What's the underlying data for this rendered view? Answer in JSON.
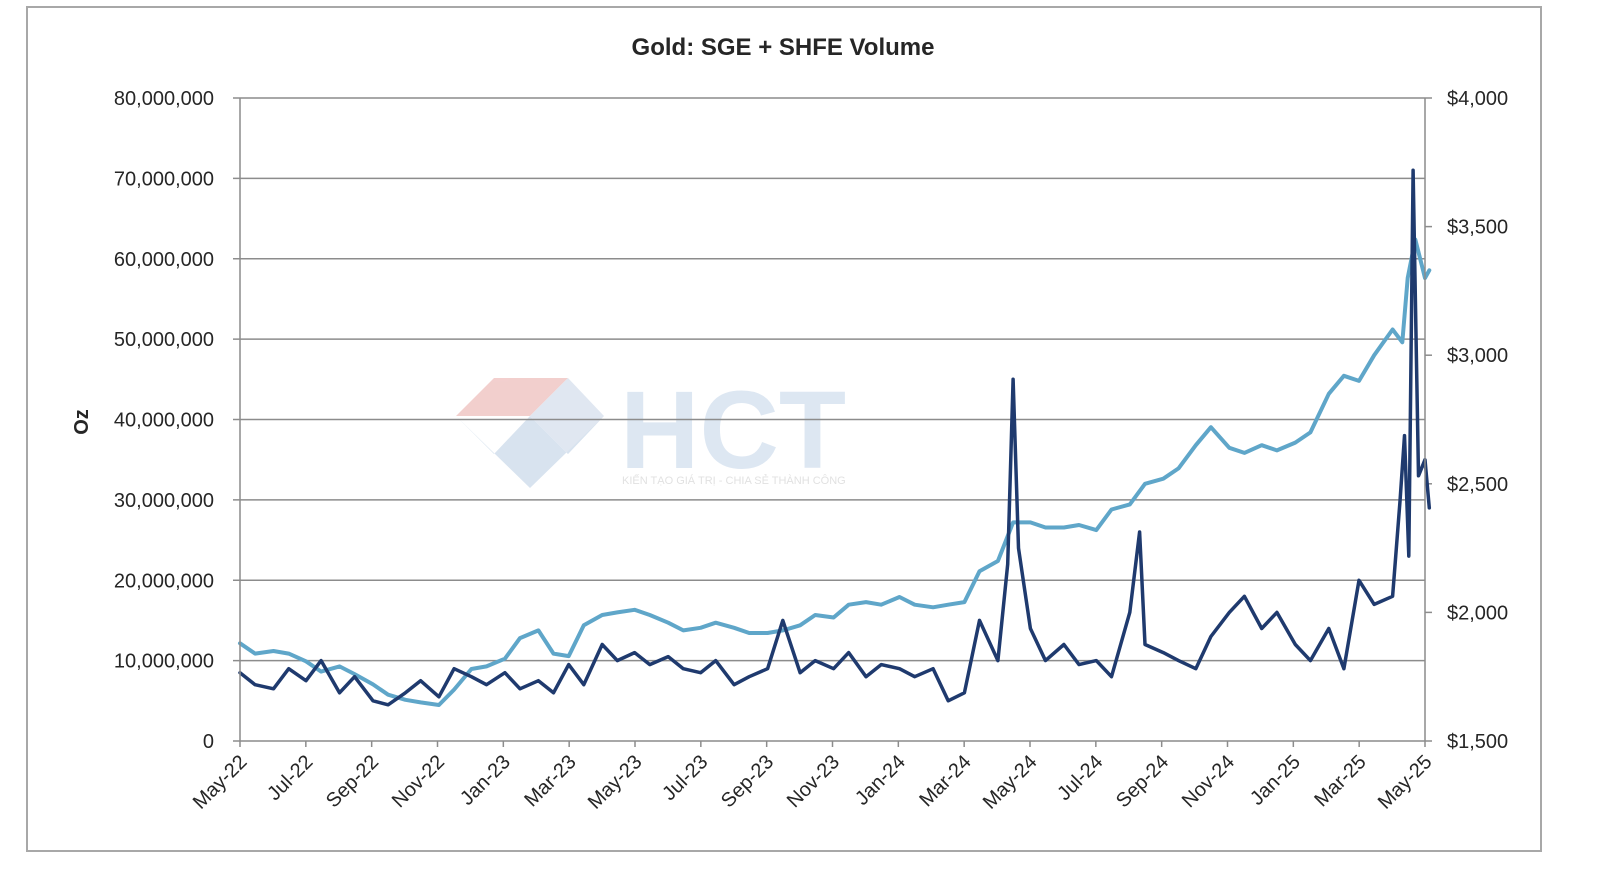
{
  "chart_data": {
    "type": "line",
    "title": "Gold: SGE + SHFE Volume",
    "ylabel": "Oz",
    "y2label": "",
    "ylim": [
      0,
      80000000
    ],
    "y2lim": [
      1500,
      4000
    ],
    "grid": true,
    "legend": "none",
    "yticks": [
      "0",
      "10,000,000",
      "20,000,000",
      "30,000,000",
      "40,000,000",
      "50,000,000",
      "60,000,000",
      "70,000,000",
      "80,000,000"
    ],
    "y2ticks": [
      "$1,500",
      "$2,000",
      "$2,500",
      "$3,000",
      "$3,500",
      "$4,000"
    ],
    "xticks": [
      "May-22",
      "Jul-22",
      "Sep-22",
      "Nov-22",
      "Jan-23",
      "Mar-23",
      "May-23",
      "Jul-23",
      "Sep-23",
      "Nov-23",
      "Jan-24",
      "Mar-24",
      "May-24",
      "Jul-24",
      "Sep-24",
      "Nov-24",
      "Jan-25",
      "Mar-25",
      "May-25"
    ],
    "series": [
      {
        "axis": "left",
        "color": "#1f3a6e",
        "x": [
          "2022-05-01",
          "2022-05-15",
          "2022-06-01",
          "2022-06-15",
          "2022-07-01",
          "2022-07-15",
          "2022-08-01",
          "2022-08-15",
          "2022-09-01",
          "2022-09-15",
          "2022-10-01",
          "2022-10-15",
          "2022-11-01",
          "2022-11-15",
          "2022-12-01",
          "2022-12-15",
          "2023-01-01",
          "2023-01-15",
          "2023-02-01",
          "2023-02-15",
          "2023-03-01",
          "2023-03-15",
          "2023-04-01",
          "2023-04-15",
          "2023-05-01",
          "2023-05-15",
          "2023-06-01",
          "2023-06-15",
          "2023-07-01",
          "2023-07-15",
          "2023-08-01",
          "2023-08-15",
          "2023-09-01",
          "2023-09-15",
          "2023-10-01",
          "2023-10-15",
          "2023-11-01",
          "2023-11-15",
          "2023-12-01",
          "2023-12-15",
          "2024-01-01",
          "2024-01-15",
          "2024-02-01",
          "2024-02-15",
          "2024-03-01",
          "2024-03-15",
          "2024-04-01",
          "2024-04-10",
          "2024-04-15",
          "2024-04-20",
          "2024-05-01",
          "2024-05-15",
          "2024-06-01",
          "2024-06-15",
          "2024-07-01",
          "2024-07-15",
          "2024-08-01",
          "2024-08-10",
          "2024-08-15",
          "2024-09-01",
          "2024-09-15",
          "2024-10-01",
          "2024-10-15",
          "2024-11-01",
          "2024-11-15",
          "2024-12-01",
          "2024-12-15",
          "2025-01-01",
          "2025-01-15",
          "2025-02-01",
          "2025-02-15",
          "2025-03-01",
          "2025-03-15",
          "2025-04-01",
          "2025-04-08",
          "2025-04-12",
          "2025-04-16",
          "2025-04-20",
          "2025-04-25",
          "2025-05-01",
          "2025-05-05"
        ],
        "values": [
          8500000,
          7000000,
          6500000,
          9000000,
          7500000,
          10000000,
          6000000,
          8000000,
          5000000,
          4500000,
          6000000,
          7500000,
          5500000,
          9000000,
          8000000,
          7000000,
          8500000,
          6500000,
          7500000,
          6000000,
          9500000,
          7000000,
          12000000,
          10000000,
          11000000,
          9500000,
          10500000,
          9000000,
          8500000,
          10000000,
          7000000,
          8000000,
          9000000,
          15000000,
          8500000,
          10000000,
          9000000,
          11000000,
          8000000,
          9500000,
          9000000,
          8000000,
          9000000,
          5000000,
          6000000,
          15000000,
          10000000,
          22000000,
          45000000,
          24000000,
          14000000,
          10000000,
          12000000,
          9500000,
          10000000,
          8000000,
          16000000,
          26000000,
          12000000,
          11000000,
          10000000,
          9000000,
          13000000,
          16000000,
          18000000,
          14000000,
          16000000,
          12000000,
          10000000,
          14000000,
          9000000,
          20000000,
          17000000,
          18000000,
          30000000,
          38000000,
          23000000,
          71000000,
          33000000,
          35000000,
          29000000
        ]
      },
      {
        "axis": "right",
        "color": "#5fa6c9",
        "x": [
          "2022-05-01",
          "2022-05-15",
          "2022-06-01",
          "2022-06-15",
          "2022-07-01",
          "2022-07-15",
          "2022-08-01",
          "2022-08-15",
          "2022-09-01",
          "2022-09-15",
          "2022-10-01",
          "2022-10-15",
          "2022-11-01",
          "2022-11-15",
          "2022-12-01",
          "2022-12-15",
          "2023-01-01",
          "2023-01-15",
          "2023-02-01",
          "2023-02-15",
          "2023-03-01",
          "2023-03-15",
          "2023-04-01",
          "2023-04-15",
          "2023-05-01",
          "2023-05-15",
          "2023-06-01",
          "2023-06-15",
          "2023-07-01",
          "2023-07-15",
          "2023-08-01",
          "2023-08-15",
          "2023-09-01",
          "2023-09-15",
          "2023-10-01",
          "2023-10-15",
          "2023-11-01",
          "2023-11-15",
          "2023-12-01",
          "2023-12-15",
          "2024-01-01",
          "2024-01-15",
          "2024-02-01",
          "2024-02-15",
          "2024-03-01",
          "2024-03-15",
          "2024-04-01",
          "2024-04-15",
          "2024-05-01",
          "2024-05-15",
          "2024-06-01",
          "2024-06-15",
          "2024-07-01",
          "2024-07-15",
          "2024-08-01",
          "2024-08-15",
          "2024-09-01",
          "2024-09-15",
          "2024-10-01",
          "2024-10-15",
          "2024-11-01",
          "2024-11-15",
          "2024-12-01",
          "2024-12-15",
          "2025-01-01",
          "2025-01-15",
          "2025-02-01",
          "2025-02-15",
          "2025-03-01",
          "2025-03-15",
          "2025-04-01",
          "2025-04-10",
          "2025-04-15",
          "2025-04-22",
          "2025-05-01",
          "2025-05-05"
        ],
        "values": [
          1880,
          1840,
          1850,
          1840,
          1810,
          1770,
          1790,
          1760,
          1720,
          1680,
          1660,
          1650,
          1640,
          1700,
          1780,
          1790,
          1820,
          1900,
          1930,
          1840,
          1830,
          1950,
          1990,
          2000,
          2010,
          1990,
          1960,
          1930,
          1940,
          1960,
          1940,
          1920,
          1920,
          1930,
          1950,
          1990,
          1980,
          2030,
          2040,
          2030,
          2060,
          2030,
          2020,
          2030,
          2040,
          2160,
          2200,
          2350,
          2350,
          2330,
          2330,
          2340,
          2320,
          2400,
          2420,
          2500,
          2520,
          2560,
          2650,
          2720,
          2640,
          2620,
          2650,
          2630,
          2660,
          2700,
          2850,
          2920,
          2900,
          3000,
          3100,
          3050,
          3300,
          3450,
          3300,
          3330
        ]
      }
    ]
  },
  "watermark": {
    "brand": "HCT",
    "tagline": "KIẾN TẠO GIÁ TRỊ - CHIA SẺ THÀNH CÔNG"
  }
}
